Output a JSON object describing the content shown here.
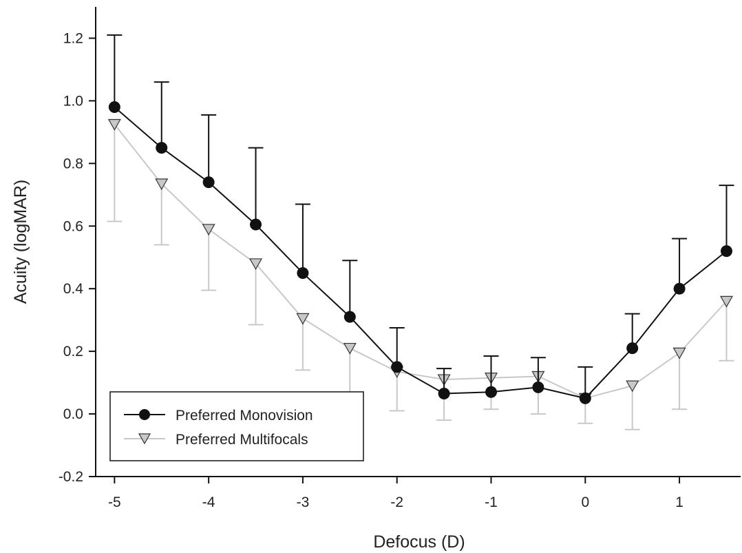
{
  "chart_data": {
    "type": "line",
    "title": "",
    "xlabel": "Defocus (D)",
    "ylabel": "Acuity (logMAR)",
    "xlim": [
      -5.2,
      1.65
    ],
    "ylim": [
      -0.2,
      1.3
    ],
    "x_ticks": [
      -5,
      -4,
      -3,
      -2,
      -1,
      0,
      1
    ],
    "y_ticks": [
      -0.2,
      0.0,
      0.2,
      0.4,
      0.6,
      0.8,
      1.0,
      1.2
    ],
    "x_tick_labels": [
      "-5",
      "-4",
      "-3",
      "-2",
      "-1",
      "0",
      "1"
    ],
    "y_tick_labels": [
      "-0.2",
      "0.0",
      "0.2",
      "0.4",
      "0.6",
      "0.8",
      "1.0",
      "1.2"
    ],
    "legend_position": "bottom-left",
    "grid": false,
    "x": [
      -5,
      -4.5,
      -4,
      -3.5,
      -3,
      -2.5,
      -2,
      -1.5,
      -1,
      -0.5,
      0,
      0.5,
      1,
      1.5
    ],
    "series": [
      {
        "name": "Preferred Monovision",
        "color": "#111111",
        "marker": "circle",
        "error_direction": "up",
        "values": [
          0.98,
          0.85,
          0.74,
          0.605,
          0.45,
          0.31,
          0.15,
          0.065,
          0.07,
          0.085,
          0.05,
          0.21,
          0.4,
          0.52
        ],
        "error": [
          0.23,
          0.21,
          0.215,
          0.245,
          0.22,
          0.18,
          0.125,
          0.08,
          0.115,
          0.095,
          0.1,
          0.11,
          0.16,
          0.21
        ]
      },
      {
        "name": "Preferred Multifocals",
        "color": "#c8c8c8",
        "marker": "triangle-down",
        "error_direction": "down",
        "values": [
          0.925,
          0.735,
          0.59,
          0.48,
          0.305,
          0.21,
          0.135,
          0.11,
          0.115,
          0.12,
          0.05,
          0.09,
          0.195,
          0.36
        ],
        "error": [
          0.31,
          0.195,
          0.195,
          0.195,
          0.165,
          0.21,
          0.125,
          0.13,
          0.1,
          0.12,
          0.08,
          0.14,
          0.18,
          0.19
        ]
      }
    ]
  }
}
